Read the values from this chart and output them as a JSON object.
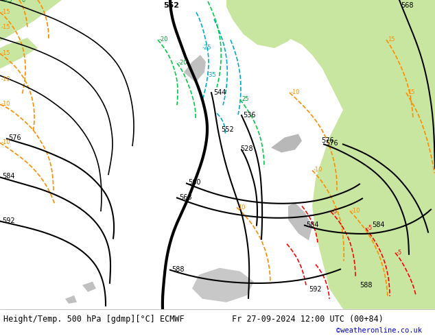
{
  "title_left": "Height/Temp. 500 hPa [gdmp][°C] ECMWF",
  "title_right": "Fr 27-09-2024 12:00 UTC (00+84)",
  "watermark": "©weatheronline.co.uk",
  "background_land_light": "#c8e6a0",
  "background_sea": "#d8d8d8",
  "z500_thick_color": "#000000",
  "temp_warm_color": "#ff8c00",
  "temp_cold_color": "#00aacc",
  "temp_verywarm_color": "#ff0000",
  "precip_color": "#00cc44",
  "fig_width": 6.34,
  "fig_height": 4.9,
  "dpi": 100,
  "bottom_bar_color": "#f0f0f0",
  "bottom_text_color": "#000000",
  "watermark_color": "#0000cc"
}
